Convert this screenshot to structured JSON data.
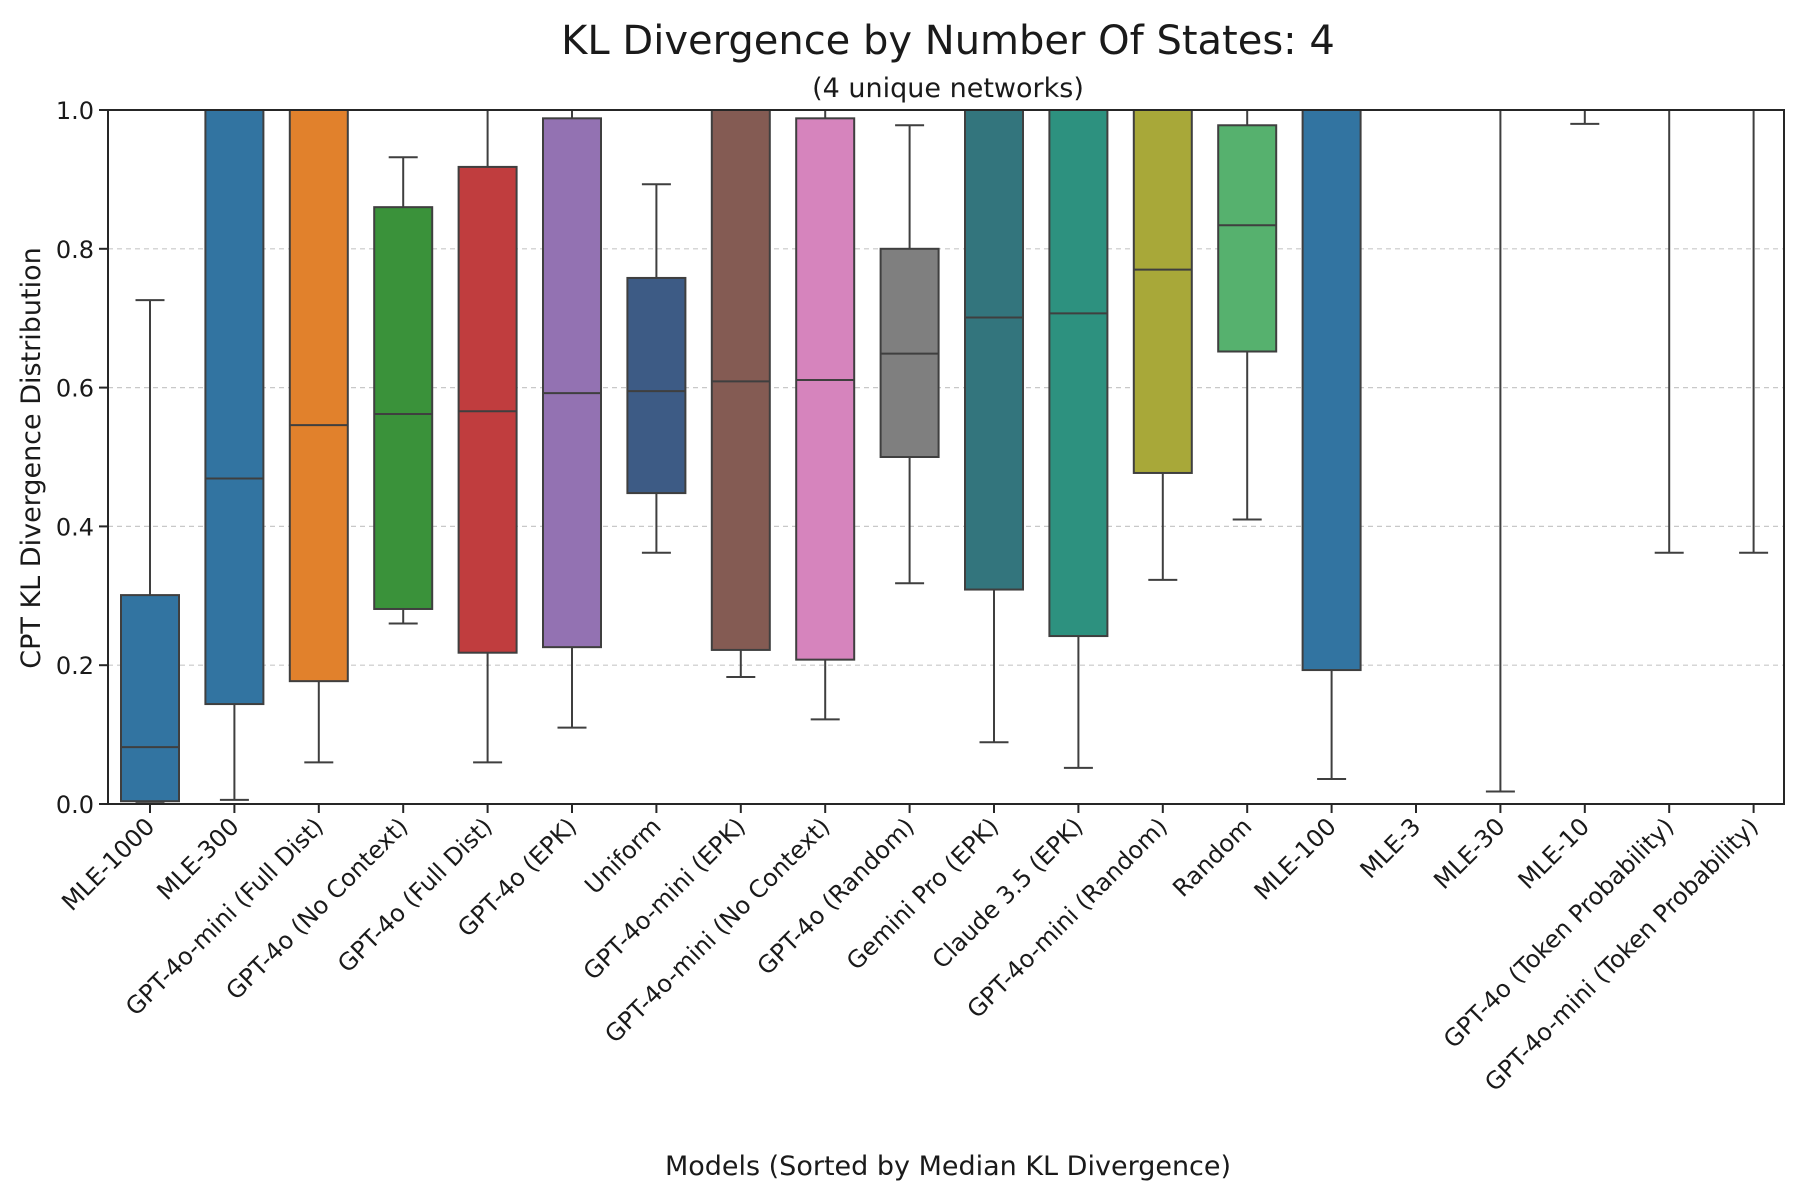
{
  "chart_data": {
    "type": "box",
    "title": "KL Divergence by Number Of States: 4",
    "subtitle": "(4 unique networks)",
    "xlabel": "Models (Sorted by Median KL Divergence)",
    "ylabel": "CPT KL Divergence Distribution",
    "ylim": [
      0,
      1.0
    ],
    "yticks": [
      "0.0",
      "0.2",
      "0.4",
      "0.6",
      "0.8",
      "1.0"
    ],
    "grid": "horizontal dashed",
    "boxes": [
      {
        "label": "MLE-1000",
        "whisker_low": 0.003,
        "q1": 0.004,
        "median": 0.082,
        "q3": 0.301,
        "whisker_high": 0.726,
        "color": "#3274a1"
      },
      {
        "label": "MLE-300",
        "whisker_low": 0.006,
        "q1": 0.144,
        "median": 0.469,
        "q3": 1.0,
        "whisker_high": 1.0,
        "color": "#3274a1"
      },
      {
        "label": "GPT-4o-mini (Full Dist)",
        "whisker_low": 0.06,
        "q1": 0.177,
        "median": 0.546,
        "q3": 1.0,
        "whisker_high": 1.0,
        "color": "#e1812c"
      },
      {
        "label": "GPT-4o (No Context)",
        "whisker_low": 0.26,
        "q1": 0.281,
        "median": 0.562,
        "q3": 0.86,
        "whisker_high": 0.932,
        "color": "#3a923a"
      },
      {
        "label": "GPT-4o (Full Dist)",
        "whisker_low": 0.06,
        "q1": 0.218,
        "median": 0.566,
        "q3": 0.918,
        "whisker_high": 1.0,
        "color": "#c03d3e"
      },
      {
        "label": "GPT-4o (EPK)",
        "whisker_low": 0.11,
        "q1": 0.226,
        "median": 0.592,
        "q3": 0.988,
        "whisker_high": 1.0,
        "color": "#9372b2"
      },
      {
        "label": "Uniform",
        "whisker_low": 0.362,
        "q1": 0.448,
        "median": 0.595,
        "q3": 0.758,
        "whisker_high": 0.893,
        "color": "#3d5b85"
      },
      {
        "label": "GPT-4o-mini (EPK)",
        "whisker_low": 0.183,
        "q1": 0.222,
        "median": 0.609,
        "q3": 1.0,
        "whisker_high": 1.0,
        "color": "#845b53"
      },
      {
        "label": "GPT-4o-mini (No Context)",
        "whisker_low": 0.122,
        "q1": 0.208,
        "median": 0.611,
        "q3": 0.988,
        "whisker_high": 1.0,
        "color": "#d684bd"
      },
      {
        "label": "GPT-4o (Random)",
        "whisker_low": 0.318,
        "q1": 0.5,
        "median": 0.649,
        "q3": 0.8,
        "whisker_high": 0.978,
        "color": "#7f7f7f"
      },
      {
        "label": "Gemini Pro (EPK)",
        "whisker_low": 0.089,
        "q1": 0.309,
        "median": 0.701,
        "q3": 1.0,
        "whisker_high": 1.0,
        "color": "#33757d"
      },
      {
        "label": "Claude 3.5 (EPK)",
        "whisker_low": 0.052,
        "q1": 0.242,
        "median": 0.707,
        "q3": 1.0,
        "whisker_high": 1.0,
        "color": "#2d917f"
      },
      {
        "label": "GPT-4o-mini (Random)",
        "whisker_low": 0.323,
        "q1": 0.477,
        "median": 0.77,
        "q3": 1.0,
        "whisker_high": 1.0,
        "color": "#a8a839"
      },
      {
        "label": "Random",
        "whisker_low": 0.41,
        "q1": 0.652,
        "median": 0.834,
        "q3": 0.978,
        "whisker_high": 1.0,
        "color": "#56b16e"
      },
      {
        "label": "MLE-100",
        "whisker_low": 0.036,
        "q1": 0.193,
        "median": 1.0,
        "q3": 1.0,
        "whisker_high": 1.0,
        "color": "#3274a1"
      },
      {
        "label": "MLE-3",
        "whisker_low": 1.0,
        "q1": 1.0,
        "median": 1.0,
        "q3": 1.0,
        "whisker_high": 1.0,
        "color": "#3274a1"
      },
      {
        "label": "MLE-30",
        "whisker_low": 0.018,
        "q1": 1.0,
        "median": 1.0,
        "q3": 1.0,
        "whisker_high": 1.0,
        "color": "#3274a1"
      },
      {
        "label": "MLE-10",
        "whisker_low": 0.98,
        "q1": 1.0,
        "median": 1.0,
        "q3": 1.0,
        "whisker_high": 1.0,
        "color": "#3274a1"
      },
      {
        "label": "GPT-4o (Token Probability)",
        "whisker_low": 0.362,
        "q1": 1.0,
        "median": 1.0,
        "q3": 1.0,
        "whisker_high": 1.0,
        "color": "#3274a1"
      },
      {
        "label": "GPT-4o-mini (Token Probability)",
        "whisker_low": 0.362,
        "q1": 1.0,
        "median": 1.0,
        "q3": 1.0,
        "whisker_high": 1.0,
        "color": "#3274a1"
      }
    ]
  }
}
